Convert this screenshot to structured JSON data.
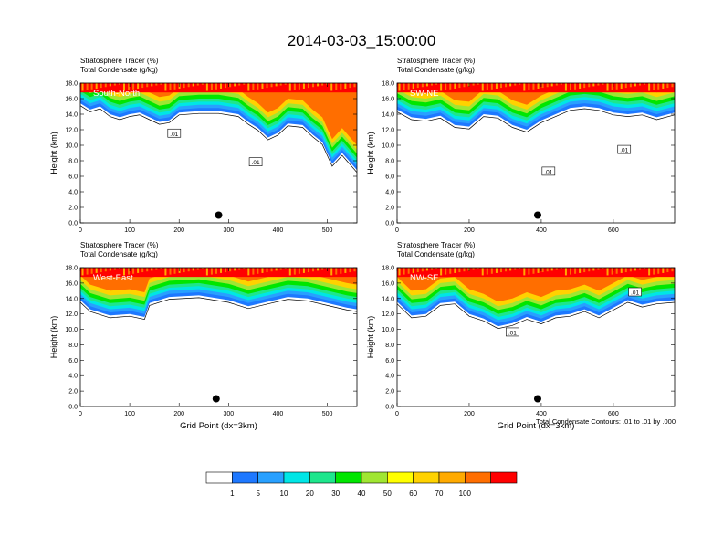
{
  "title": "2014-03-03_15:00:00",
  "colors": {
    "levels": [
      "#ffffff",
      "#1e78ff",
      "#28a0ff",
      "#00e6e6",
      "#1ee68c",
      "#00e600",
      "#a0e632",
      "#ffff00",
      "#ffd200",
      "#ffaa00",
      "#ff6e00",
      "#ff0000"
    ],
    "contour": "#000000"
  },
  "chart_data": {
    "type": "heatmap",
    "series_name_top": "Stratosphere Tracer   (%)",
    "series_name_bottom": "Total Condensate   (g/kg)",
    "ylabel": "Height (km)",
    "xlabel": "Grid Point (dx=3km)",
    "contour_note": "Total Condensate Contours: .01 to .01 by .000",
    "contour_level_label": ".01",
    "colorbar_labels": [
      "1",
      "5",
      "10",
      "20",
      "30",
      "40",
      "50",
      "60",
      "70",
      "100"
    ],
    "yticks": [
      "0.0",
      "2.0",
      "4.0",
      "6.0",
      "8.0",
      "10.0",
      "12.0",
      "14.0",
      "16.0",
      "18.0"
    ],
    "ylim": [
      0,
      18
    ],
    "panels": [
      {
        "label": "South-North",
        "xlim": [
          0,
          560
        ],
        "xticks": [
          "0",
          "100",
          "200",
          "300",
          "400",
          "500"
        ],
        "xtick_values": [
          0,
          100,
          200,
          300,
          400,
          500
        ],
        "marker": [
          280,
          1.0
        ],
        "contour_labels": [
          [
            190,
            11.5
          ],
          [
            355,
            7.8
          ]
        ],
        "profile": [
          [
            0,
            16.0
          ],
          [
            20,
            15.2
          ],
          [
            40,
            15.6
          ],
          [
            60,
            14.6
          ],
          [
            80,
            14.2
          ],
          [
            100,
            14.6
          ],
          [
            120,
            14.8
          ],
          [
            140,
            14.2
          ],
          [
            160,
            13.6
          ],
          [
            180,
            13.8
          ],
          [
            200,
            14.8
          ],
          [
            240,
            15.0
          ],
          [
            280,
            15.0
          ],
          [
            320,
            14.6
          ],
          [
            340,
            13.6
          ],
          [
            360,
            12.8
          ],
          [
            380,
            11.6
          ],
          [
            400,
            12.2
          ],
          [
            420,
            13.4
          ],
          [
            450,
            13.2
          ],
          [
            470,
            12.0
          ],
          [
            490,
            11.0
          ],
          [
            510,
            8.2
          ],
          [
            530,
            9.6
          ],
          [
            560,
            7.4
          ]
        ]
      },
      {
        "label": "SW-NE",
        "xlim": [
          0,
          770
        ],
        "xticks": [
          "0",
          "200",
          "400",
          "600"
        ],
        "xtick_values": [
          0,
          200,
          400,
          600
        ],
        "marker": [
          390,
          1.0
        ],
        "contour_labels": [
          [
            420,
            6.6
          ],
          [
            630,
            9.4
          ]
        ],
        "profile": [
          [
            0,
            15.2
          ],
          [
            40,
            14.2
          ],
          [
            80,
            14.0
          ],
          [
            120,
            14.4
          ],
          [
            160,
            13.2
          ],
          [
            200,
            13.0
          ],
          [
            240,
            14.6
          ],
          [
            280,
            14.4
          ],
          [
            320,
            13.2
          ],
          [
            360,
            12.6
          ],
          [
            400,
            13.8
          ],
          [
            440,
            14.6
          ],
          [
            480,
            15.4
          ],
          [
            520,
            15.6
          ],
          [
            560,
            15.4
          ],
          [
            600,
            14.8
          ],
          [
            640,
            14.6
          ],
          [
            680,
            14.8
          ],
          [
            720,
            14.2
          ],
          [
            770,
            14.8
          ]
        ]
      },
      {
        "label": "West-East",
        "xlim": [
          0,
          560
        ],
        "xticks": [
          "0",
          "100",
          "200",
          "300",
          "400",
          "500"
        ],
        "xtick_values": [
          0,
          100,
          200,
          300,
          400,
          500
        ],
        "marker": [
          275,
          1.0
        ],
        "contour_labels": [],
        "profile": [
          [
            0,
            14.4
          ],
          [
            20,
            13.2
          ],
          [
            60,
            12.4
          ],
          [
            100,
            12.6
          ],
          [
            130,
            12.2
          ],
          [
            140,
            14.0
          ],
          [
            180,
            14.8
          ],
          [
            240,
            15.0
          ],
          [
            300,
            14.4
          ],
          [
            340,
            13.6
          ],
          [
            380,
            14.2
          ],
          [
            420,
            14.8
          ],
          [
            460,
            14.6
          ],
          [
            500,
            14.0
          ],
          [
            540,
            13.4
          ],
          [
            560,
            13.2
          ]
        ]
      },
      {
        "label": "NW-SE",
        "xlim": [
          0,
          770
        ],
        "xticks": [
          "0",
          "200",
          "400",
          "600"
        ],
        "xtick_values": [
          0,
          200,
          400,
          600
        ],
        "marker": [
          390,
          1.0
        ],
        "contour_labels": [
          [
            320,
            9.6
          ],
          [
            660,
            14.8
          ]
        ],
        "profile": [
          [
            0,
            14.2
          ],
          [
            40,
            12.4
          ],
          [
            80,
            12.6
          ],
          [
            120,
            14.0
          ],
          [
            160,
            14.2
          ],
          [
            200,
            12.6
          ],
          [
            240,
            12.0
          ],
          [
            280,
            11.0
          ],
          [
            320,
            11.4
          ],
          [
            360,
            12.2
          ],
          [
            400,
            11.6
          ],
          [
            440,
            12.4
          ],
          [
            480,
            12.6
          ],
          [
            520,
            13.2
          ],
          [
            560,
            12.4
          ],
          [
            600,
            13.4
          ],
          [
            640,
            14.4
          ],
          [
            680,
            13.8
          ],
          [
            720,
            14.2
          ],
          [
            770,
            14.4
          ]
        ]
      }
    ]
  }
}
